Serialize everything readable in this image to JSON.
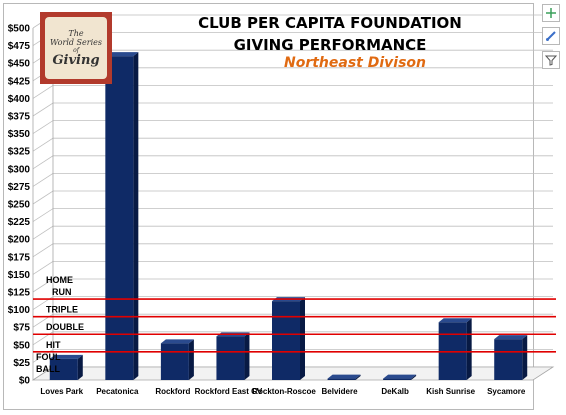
{
  "logo": {
    "line1": "The",
    "line2": "World Series",
    "line3": "of",
    "line4": "Giving"
  },
  "chart_data": {
    "type": "bar",
    "title": "CLUB PER CAPITA FOUNDATION",
    "title_line2": "GIVING PERFORMANCE",
    "subtitle": "Northeast Divison",
    "categories": [
      "Loves Park",
      "Pecatonica",
      "Rockford",
      "Rockford East CV",
      "Rockton-Roscoe",
      "Belvidere",
      "DeKalb",
      "Kish Sunrise",
      "Sycamore"
    ],
    "values": [
      30,
      460,
      52,
      62,
      112,
      2,
      2,
      82,
      58
    ],
    "ylim": [
      0,
      500
    ],
    "ytick_step": 25,
    "ytick_format": "$",
    "grid": true,
    "bar_color": "#0f2a66",
    "reference_lines": [
      {
        "label_lines": [
          "FOUL",
          "BALL"
        ],
        "value": 0
      },
      {
        "label_lines": [
          "HIT"
        ],
        "value": 40
      },
      {
        "label_lines": [
          "DOUBLE"
        ],
        "value": 65
      },
      {
        "label_lines": [
          "TRIPLE"
        ],
        "value": 90
      },
      {
        "label_lines": [
          "HOME",
          "RUN"
        ],
        "value": 115
      }
    ],
    "reference_line_color": "#e00000"
  },
  "toolbar": {
    "icons": [
      "plus-icon",
      "brush-icon",
      "filter-icon"
    ]
  }
}
